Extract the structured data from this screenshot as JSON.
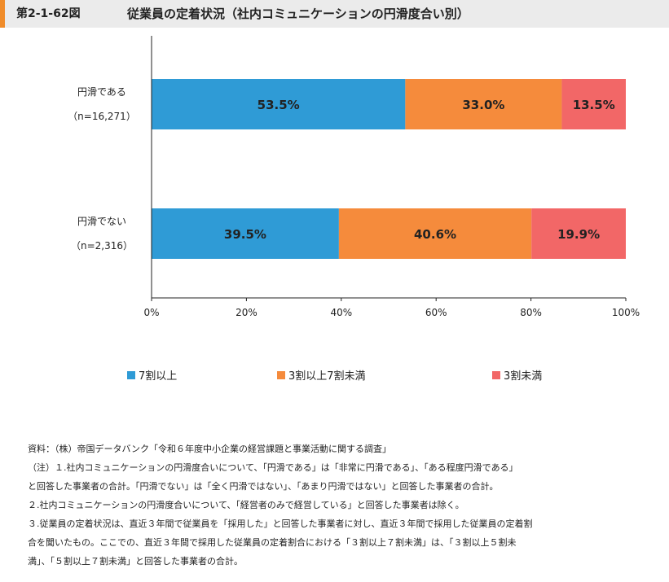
{
  "header": {
    "figure_number": "第2-1-62図",
    "title": "従業員の定着状況（社内コミュニケーションの円滑度合い別）"
  },
  "chart_data": {
    "type": "bar",
    "orientation": "horizontal",
    "stacked": true,
    "unit": "%",
    "categories": [
      {
        "label": "円滑である",
        "sublabel": "（n=16,271）"
      },
      {
        "label": "円滑でない",
        "sublabel": "（n=2,316）"
      }
    ],
    "series": [
      {
        "name": "7割以上",
        "color": "#2f9bd6",
        "values": [
          53.5,
          39.5
        ]
      },
      {
        "name": "3割以上7割未満",
        "color": "#f58b3c",
        "values": [
          33.0,
          40.6
        ]
      },
      {
        "name": "3割未満",
        "color": "#f26767",
        "values": [
          13.5,
          19.9
        ]
      }
    ],
    "xlim": [
      0,
      100
    ],
    "x_ticks": [
      "0%",
      "20%",
      "40%",
      "60%",
      "80%",
      "100%"
    ],
    "legend_position": "bottom",
    "grid": false
  },
  "notes": [
    "資料：（株）帝国データバンク「令和６年度中小企業の経営課題と事業活動に関する調査」",
    "（注）１.社内コミュニケーションの円滑度合いについて、「円滑である」は「非常に円滑である」、「ある程度円滑である」",
    "と回答した事業者の合計。「円滑でない」は「全く円滑ではない」、「あまり円滑ではない」と回答した事業者の合計。",
    "２.社内コミュニケーションの円滑度合いについて、「経営者のみで経営している」と回答した事業者は除く。",
    "３.従業員の定着状況は、直近３年間で従業員を「採用した」と回答した事業者に対し、直近３年間で採用した従業員の定着割",
    "合を聞いたもの。ここでの、直近３年間で採用した従業員の定着割合における「３割以上７割未満」は、「３割以上５割未",
    "満」、「５割以上７割未満」と回答した事業者の合計。"
  ]
}
